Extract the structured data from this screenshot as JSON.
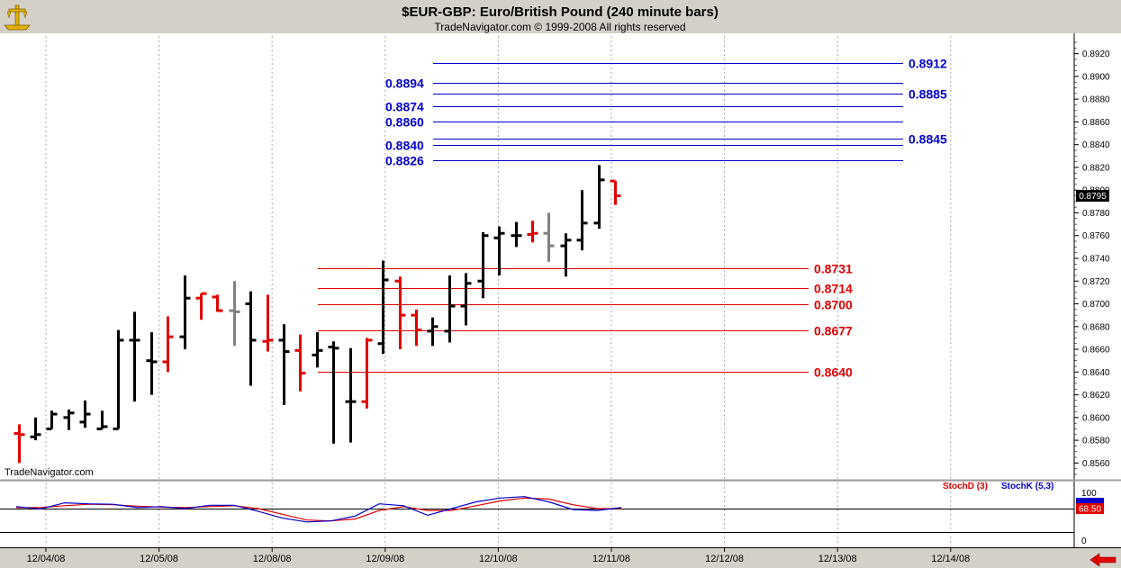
{
  "header": {
    "title": "$EUR-GBP:  Euro/British Pound  (240 minute bars)",
    "copyright": "TradeNavigator.com © 1999-2008 All rights reserved",
    "watermark": "TradeNavigator.com"
  },
  "colors": {
    "background": "#ffffff",
    "frame": "#d4d0c8",
    "up_bar": "#000000",
    "down_bar": "#e00000",
    "neutral_bar": "#808080",
    "blue_level": "#0000cc",
    "red_level": "#e00000",
    "stoch_d": "#e00000",
    "stoch_k": "#0000cc"
  },
  "chart_data": {
    "type": "ohlc",
    "y_axis": {
      "ylim": [
        0.855,
        0.893
      ],
      "ticks": [
        "0.8920",
        "0.8900",
        "0.8880",
        "0.8860",
        "0.8840",
        "0.8820",
        "0.8800",
        "0.8780",
        "0.8760",
        "0.8740",
        "0.8720",
        "0.8700",
        "0.8680",
        "0.8660",
        "0.8640",
        "0.8620",
        "0.8600",
        "0.8580",
        "0.8560"
      ],
      "last_price": "0.8795"
    },
    "x_axis": {
      "labels": [
        "12/04/08",
        "12/05/08",
        "12/08/08",
        "12/09/08",
        "12/10/08",
        "12/11/08",
        "12/12/08",
        "12/13/08",
        "12/14/08"
      ],
      "bars_per_day": 6,
      "first_bar_offset": 3
    },
    "bars": [
      {
        "o": 0.8586,
        "h": 0.8594,
        "l": 0.856,
        "c": 0.8585,
        "color": "red"
      },
      {
        "o": 0.8583,
        "h": 0.86,
        "l": 0.858,
        "c": 0.8585,
        "color": "black"
      },
      {
        "o": 0.859,
        "h": 0.8606,
        "l": 0.859,
        "c": 0.8603,
        "color": "black"
      },
      {
        "o": 0.86,
        "h": 0.8607,
        "l": 0.8589,
        "c": 0.8604,
        "color": "black"
      },
      {
        "o": 0.8596,
        "h": 0.8615,
        "l": 0.8591,
        "c": 0.8603,
        "color": "black"
      },
      {
        "o": 0.859,
        "h": 0.8606,
        "l": 0.859,
        "c": 0.8592,
        "color": "black"
      },
      {
        "o": 0.859,
        "h": 0.8677,
        "l": 0.859,
        "c": 0.8668,
        "color": "black"
      },
      {
        "o": 0.8668,
        "h": 0.8693,
        "l": 0.8614,
        "c": 0.8668,
        "color": "black"
      },
      {
        "o": 0.865,
        "h": 0.8675,
        "l": 0.862,
        "c": 0.8649,
        "color": "black"
      },
      {
        "o": 0.8649,
        "h": 0.8689,
        "l": 0.864,
        "c": 0.8671,
        "color": "red"
      },
      {
        "o": 0.8671,
        "h": 0.8725,
        "l": 0.866,
        "c": 0.8705,
        "color": "black"
      },
      {
        "o": 0.8705,
        "h": 0.8709,
        "l": 0.8686,
        "c": 0.8709,
        "color": "red"
      },
      {
        "o": 0.8706,
        "h": 0.8708,
        "l": 0.8693,
        "c": 0.8694,
        "color": "red"
      },
      {
        "o": 0.8694,
        "h": 0.872,
        "l": 0.8663,
        "c": 0.8693,
        "color": "gray"
      },
      {
        "o": 0.87,
        "h": 0.8711,
        "l": 0.8628,
        "c": 0.8668,
        "color": "black"
      },
      {
        "o": 0.8667,
        "h": 0.8708,
        "l": 0.8658,
        "c": 0.8668,
        "color": "red"
      },
      {
        "o": 0.8668,
        "h": 0.8682,
        "l": 0.8611,
        "c": 0.8658,
        "color": "black"
      },
      {
        "o": 0.8659,
        "h": 0.8673,
        "l": 0.8623,
        "c": 0.8639,
        "color": "red"
      },
      {
        "o": 0.8655,
        "h": 0.8675,
        "l": 0.8644,
        "c": 0.8659,
        "color": "black"
      },
      {
        "o": 0.8662,
        "h": 0.8667,
        "l": 0.8577,
        "c": 0.8661,
        "color": "black"
      },
      {
        "o": 0.8614,
        "h": 0.8661,
        "l": 0.8578,
        "c": 0.8614,
        "color": "black"
      },
      {
        "o": 0.8614,
        "h": 0.867,
        "l": 0.8608,
        "c": 0.8668,
        "color": "red"
      },
      {
        "o": 0.8665,
        "h": 0.8738,
        "l": 0.8656,
        "c": 0.8721,
        "color": "black"
      },
      {
        "o": 0.872,
        "h": 0.8724,
        "l": 0.866,
        "c": 0.869,
        "color": "red"
      },
      {
        "o": 0.869,
        "h": 0.8695,
        "l": 0.8663,
        "c": 0.8677,
        "color": "red"
      },
      {
        "o": 0.8676,
        "h": 0.8688,
        "l": 0.8663,
        "c": 0.868,
        "color": "black"
      },
      {
        "o": 0.8676,
        "h": 0.8725,
        "l": 0.8666,
        "c": 0.8698,
        "color": "black"
      },
      {
        "o": 0.8698,
        "h": 0.8727,
        "l": 0.8681,
        "c": 0.8718,
        "color": "black"
      },
      {
        "o": 0.872,
        "h": 0.8763,
        "l": 0.8705,
        "c": 0.876,
        "color": "black"
      },
      {
        "o": 0.8758,
        "h": 0.8768,
        "l": 0.8725,
        "c": 0.8762,
        "color": "black"
      },
      {
        "o": 0.876,
        "h": 0.8772,
        "l": 0.875,
        "c": 0.876,
        "color": "black"
      },
      {
        "o": 0.8761,
        "h": 0.8773,
        "l": 0.8754,
        "c": 0.8762,
        "color": "red"
      },
      {
        "o": 0.8762,
        "h": 0.878,
        "l": 0.8737,
        "c": 0.8751,
        "color": "gray"
      },
      {
        "o": 0.8751,
        "h": 0.8762,
        "l": 0.8724,
        "c": 0.8756,
        "color": "black"
      },
      {
        "o": 0.8756,
        "h": 0.88,
        "l": 0.8747,
        "c": 0.8771,
        "color": "black"
      },
      {
        "o": 0.8771,
        "h": 0.8822,
        "l": 0.8766,
        "c": 0.8809,
        "color": "black"
      },
      {
        "o": 0.8808,
        "h": 0.8808,
        "l": 0.8787,
        "c": 0.8795,
        "color": "red"
      }
    ],
    "levels_blue": [
      {
        "value": 0.8912,
        "label": "0.8912",
        "label_side": "right"
      },
      {
        "value": 0.8894,
        "label": "0.8894",
        "label_side": "left"
      },
      {
        "value": 0.8885,
        "label": "0.8885",
        "label_side": "right"
      },
      {
        "value": 0.8874,
        "label": "0.8874",
        "label_side": "left"
      },
      {
        "value": 0.886,
        "label": "0.8860",
        "label_side": "left"
      },
      {
        "value": 0.8845,
        "label": "0.8845",
        "label_side": "right"
      },
      {
        "value": 0.884,
        "label": "0.8840",
        "label_side": "left"
      },
      {
        "value": 0.8826,
        "label": "0.8826",
        "label_side": "left"
      }
    ],
    "levels_red": [
      {
        "value": 0.8731,
        "label": "0.8731"
      },
      {
        "value": 0.8714,
        "label": "0.8714"
      },
      {
        "value": 0.87,
        "label": "0.8700"
      },
      {
        "value": 0.8677,
        "label": "0.8677"
      },
      {
        "value": 0.864,
        "label": "0.8640"
      }
    ],
    "stochastic": {
      "legend_d": "StochD (3)",
      "legend_k": "StochK (5,3)",
      "axis_top": "100",
      "axis_bottom": "0",
      "last_value": "68.50",
      "reference_level": 68,
      "k": [
        72,
        67,
        80,
        78,
        77,
        70,
        72,
        68,
        75,
        75,
        62,
        48,
        40,
        42,
        52,
        78,
        74,
        54,
        68,
        82,
        90,
        93,
        82,
        66,
        64,
        70
      ],
      "d": [
        70,
        70,
        74,
        77,
        76,
        73,
        71,
        70,
        72,
        74,
        68,
        56,
        44,
        42,
        46,
        64,
        72,
        64,
        64,
        74,
        84,
        90,
        88,
        76,
        68,
        68
      ]
    }
  }
}
